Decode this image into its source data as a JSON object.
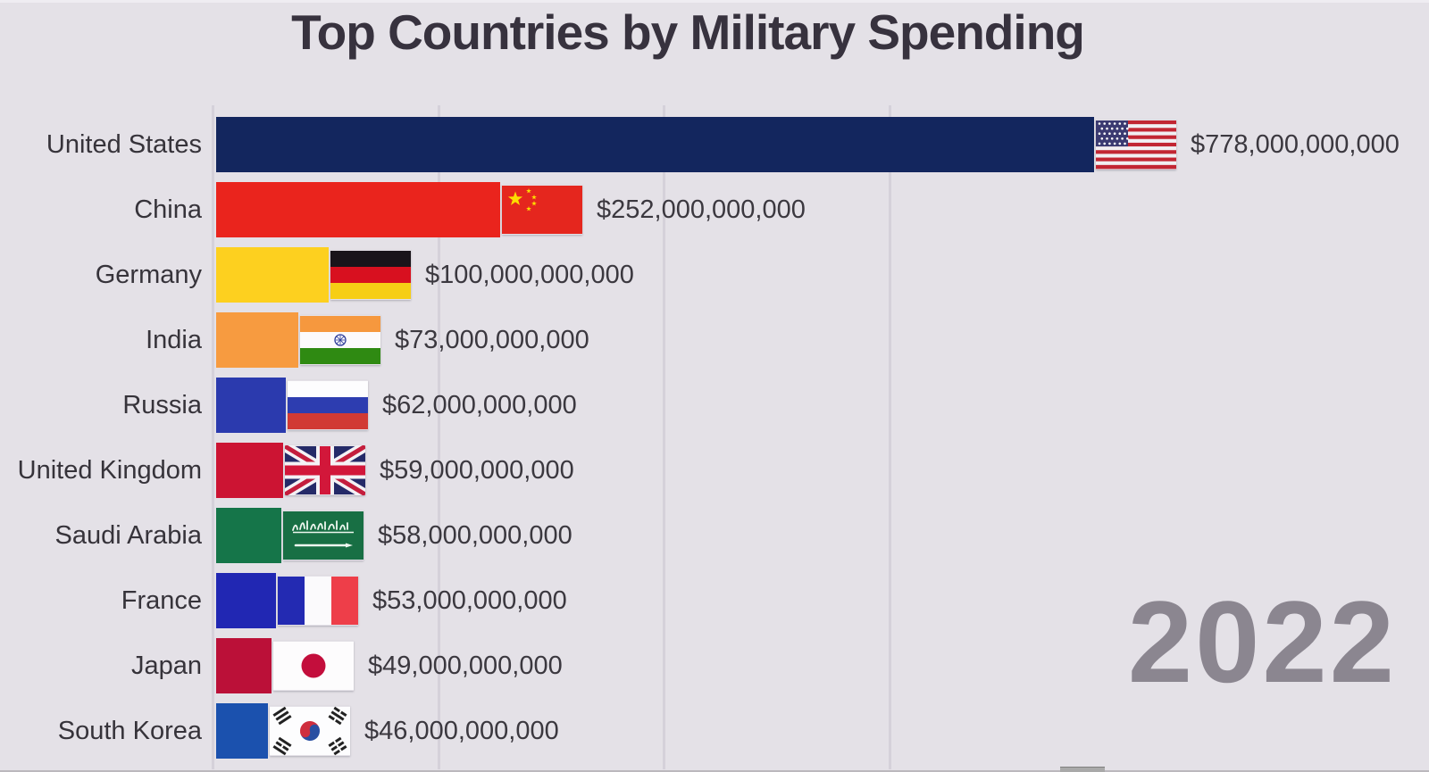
{
  "title": "Top Countries by Military Spending",
  "year": "2022",
  "rows": [
    {
      "country": "United States",
      "value_label": "$778,000,000,000",
      "value_billions": 778,
      "flag": "us",
      "bar_color": "#13265e"
    },
    {
      "country": "China",
      "value_label": "$252,000,000,000",
      "value_billions": 252,
      "flag": "cn",
      "bar_color": "#ea241d"
    },
    {
      "country": "Germany",
      "value_label": "$100,000,000,000",
      "value_billions": 100,
      "flag": "de",
      "bar_color": "#fdd01f"
    },
    {
      "country": "India",
      "value_label": "$73,000,000,000",
      "value_billions": 73,
      "flag": "in",
      "bar_color": "#f79b40"
    },
    {
      "country": "Russia",
      "value_label": "$62,000,000,000",
      "value_billions": 62,
      "flag": "ru",
      "bar_color": "#2b3aae"
    },
    {
      "country": "United Kingdom",
      "value_label": "$59,000,000,000",
      "value_billions": 59,
      "flag": "gb",
      "bar_color": "#cc1433"
    },
    {
      "country": "Saudi Arabia",
      "value_label": "$58,000,000,000",
      "value_billions": 58,
      "flag": "sa",
      "bar_color": "#157549"
    },
    {
      "country": "France",
      "value_label": "$53,000,000,000",
      "value_billions": 53,
      "flag": "fr",
      "bar_color": "#2127b3"
    },
    {
      "country": "Japan",
      "value_label": "$49,000,000,000",
      "value_billions": 49,
      "flag": "jp",
      "bar_color": "#bb1038"
    },
    {
      "country": "South Korea",
      "value_label": "$46,000,000,000",
      "value_billions": 46,
      "flag": "kr",
      "bar_color": "#1b51ae"
    }
  ],
  "chart_data": {
    "type": "bar",
    "orientation": "horizontal",
    "title": "Top Countries by Military Spending",
    "xlabel": "",
    "ylabel": "",
    "unit": "USD",
    "categories": [
      "United States",
      "China",
      "Germany",
      "India",
      "Russia",
      "United Kingdom",
      "Saudi Arabia",
      "France",
      "Japan",
      "South Korea"
    ],
    "values": [
      778000000000,
      252000000000,
      100000000000,
      73000000000,
      62000000000,
      59000000000,
      58000000000,
      53000000000,
      49000000000,
      46000000000
    ],
    "value_labels": [
      "$778,000,000,000",
      "$252,000,000,000",
      "$100,000,000,000",
      "$73,000,000,000",
      "$62,000,000,000",
      "$59,000,000,000",
      "$58,000,000,000",
      "$53,000,000,000",
      "$49,000,000,000",
      "$46,000,000,000"
    ],
    "xlim": [
      0,
      800000000000
    ],
    "gridlines_billions": [
      0,
      200,
      400,
      600
    ],
    "grid": "vertical",
    "legend": "none",
    "annotation_year": "2022",
    "bar_flags": [
      "us",
      "cn",
      "de",
      "in",
      "ru",
      "gb",
      "sa",
      "fr",
      "jp",
      "kr"
    ],
    "background_color": "#e4e1e7",
    "gridline_color": "#d5d1da",
    "title_color": "#37323e",
    "year_color": "#8b8690"
  }
}
